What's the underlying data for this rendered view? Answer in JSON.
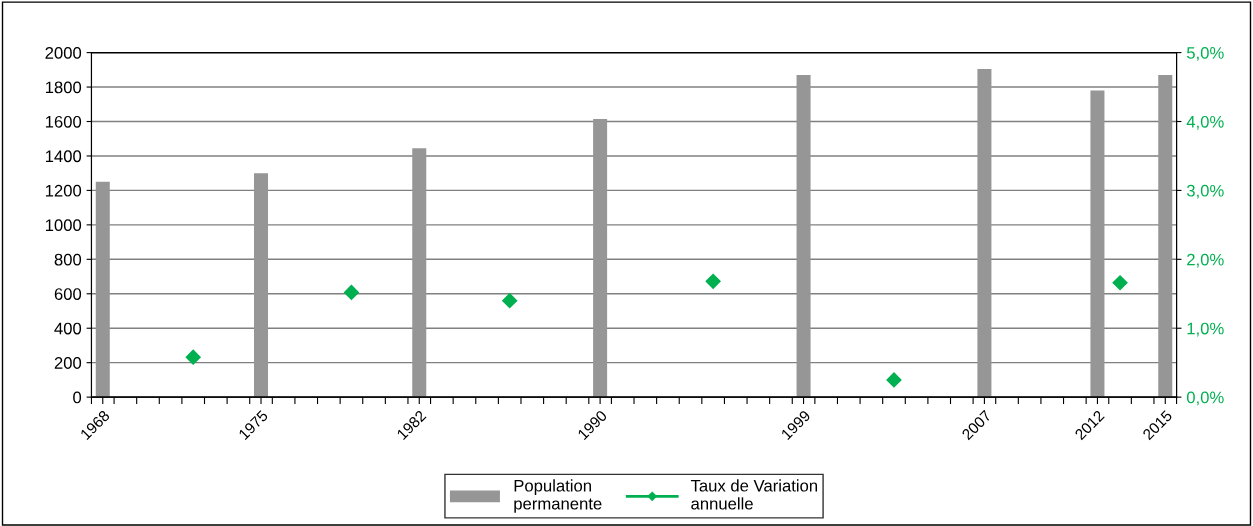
{
  "chart_data": {
    "type": "bar",
    "series": [
      {
        "name": "Population\npermanente",
        "color": "#969696",
        "x": [
          1968,
          1975,
          1982,
          1990,
          1999,
          2007,
          2012,
          2015
        ],
        "values": [
          1250,
          1300,
          1445,
          1615,
          1870,
          1905,
          1780,
          1870
        ]
      },
      {
        "name": "Taux de Variation\nannuelle",
        "type": "scatter",
        "axis": "y2",
        "color": "#00b050",
        "x": [
          1972,
          1979,
          1986,
          1995,
          2003,
          2013
        ],
        "values": [
          0.58,
          1.52,
          1.4,
          1.68,
          0.25,
          1.66
        ]
      }
    ],
    "marker": "diamond",
    "xlim": [
      1967.5,
      2015.5
    ],
    "xticks": [
      {
        "value": 1968,
        "label": "1968"
      },
      {
        "value": 1975,
        "label": "1975"
      },
      {
        "value": 1982,
        "label": "1982"
      },
      {
        "value": 1990,
        "label": "1990"
      },
      {
        "value": 1999,
        "label": "1999"
      },
      {
        "value": 2007,
        "label": "2007"
      },
      {
        "value": 2012,
        "label": "2012"
      },
      {
        "value": 2015,
        "label": "2015"
      },
      {
        "value": 1967.5,
        "label": null
      },
      {
        "value": 1968.5,
        "label": null
      },
      {
        "value": 1969.5,
        "label": null
      },
      {
        "value": 1970.5,
        "label": null
      },
      {
        "value": 1971.5,
        "label": null
      },
      {
        "value": 1972.5,
        "label": null
      },
      {
        "value": 1973.5,
        "label": null
      },
      {
        "value": 1974.5,
        "label": null
      },
      {
        "value": 1975.5,
        "label": null
      },
      {
        "value": 1976.5,
        "label": null
      },
      {
        "value": 1977.5,
        "label": null
      },
      {
        "value": 1978.5,
        "label": null
      },
      {
        "value": 1979.5,
        "label": null
      },
      {
        "value": 1980.5,
        "label": null
      },
      {
        "value": 1981.5,
        "label": null
      },
      {
        "value": 1982.5,
        "label": null
      },
      {
        "value": 1983.5,
        "label": null
      },
      {
        "value": 1984.5,
        "label": null
      },
      {
        "value": 1985.5,
        "label": null
      },
      {
        "value": 1986.5,
        "label": null
      },
      {
        "value": 1987.5,
        "label": null
      },
      {
        "value": 1988.5,
        "label": null
      },
      {
        "value": 1989.5,
        "label": null
      },
      {
        "value": 1990.5,
        "label": null
      },
      {
        "value": 1991.5,
        "label": null
      },
      {
        "value": 1992.5,
        "label": null
      },
      {
        "value": 1993.5,
        "label": null
      },
      {
        "value": 1994.5,
        "label": null
      },
      {
        "value": 1995.5,
        "label": null
      },
      {
        "value": 1996.5,
        "label": null
      },
      {
        "value": 1997.5,
        "label": null
      },
      {
        "value": 1998.5,
        "label": null
      },
      {
        "value": 1999.5,
        "label": null
      },
      {
        "value": 2000.5,
        "label": null
      },
      {
        "value": 2001.5,
        "label": null
      },
      {
        "value": 2002.5,
        "label": null
      },
      {
        "value": 2003.5,
        "label": null
      },
      {
        "value": 2004.5,
        "label": null
      },
      {
        "value": 2005.5,
        "label": null
      },
      {
        "value": 2006.5,
        "label": null
      },
      {
        "value": 2007.5,
        "label": null
      },
      {
        "value": 2008.5,
        "label": null
      },
      {
        "value": 2009.5,
        "label": null
      },
      {
        "value": 2010.5,
        "label": null
      },
      {
        "value": 2011.5,
        "label": null
      },
      {
        "value": 2012.5,
        "label": null
      },
      {
        "value": 2013.5,
        "label": null
      },
      {
        "value": 2014.5,
        "label": null
      },
      {
        "value": 2015.5,
        "label": null
      }
    ],
    "ylim": [
      0,
      2000
    ],
    "yticks": [
      0,
      200,
      400,
      600,
      800,
      1000,
      1200,
      1400,
      1600,
      1800,
      2000
    ],
    "y2lim": [
      0,
      5
    ],
    "y2ticks": [
      {
        "value": 0,
        "label": "0,0%"
      },
      {
        "value": 1,
        "label": "1,0%"
      },
      {
        "value": 2,
        "label": "2,0%"
      },
      {
        "value": 3,
        "label": "3,0%"
      },
      {
        "value": 4,
        "label": "4,0%"
      },
      {
        "value": 5,
        "label": "5,0%"
      }
    ],
    "grid": "y",
    "legend": "bottom"
  }
}
